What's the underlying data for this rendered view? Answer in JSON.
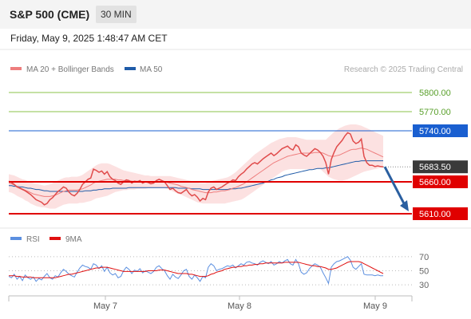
{
  "header": {
    "instrument": "S&P 500 (CME)",
    "timeframe": "30 MIN",
    "datetime": "Friday, May 9, 2025 1:48:47 AM CET"
  },
  "legend": {
    "ma20_label": "MA 20 + Bollinger Bands",
    "ma50_label": "MA 50",
    "copyright": "Research © 2025 Trading Central",
    "rsi_label": "RSI",
    "ma9_label": "9MA"
  },
  "colors": {
    "price": "#e04b4b",
    "ma20": "#ee7d7d",
    "bollinger_fill": "#fbdada",
    "ma50": "#1f5ba8",
    "resistance_blue": "#1a5fd0",
    "support_red": "#e00000",
    "target_green": "#8bc34a",
    "current_price_tag": "#3a3a3a",
    "rsi": "#5b8fe0",
    "rsi_ma": "#e01010",
    "arrow": "#2a5fa0"
  },
  "chart_data": [
    {
      "type": "line",
      "title": "",
      "x_ticks": [
        "May 7",
        "May 8",
        "May 9"
      ],
      "ylim": [
        5595,
        5825
      ],
      "current_price": 5683.5,
      "levels": [
        {
          "value": 5800.0,
          "label": "5800.00",
          "kind": "target"
        },
        {
          "value": 5770.0,
          "label": "5770.00",
          "kind": "target"
        },
        {
          "value": 5740.0,
          "label": "5740.00",
          "kind": "resistance"
        },
        {
          "value": 5683.5,
          "label": "5683.50",
          "kind": "current"
        },
        {
          "value": 5660.0,
          "label": "5660.00",
          "kind": "pivot"
        },
        {
          "value": 5610.0,
          "label": "5610.00",
          "kind": "support"
        }
      ],
      "forecast_arrow": {
        "from": 5683.5,
        "to": 5610.0,
        "direction": "down"
      },
      "series": [
        {
          "name": "Price",
          "values": [
            5661,
            5659,
            5656,
            5652,
            5650,
            5648,
            5646,
            5643,
            5640,
            5636,
            5632,
            5630,
            5628,
            5624,
            5626,
            5632,
            5635,
            5640,
            5645,
            5648,
            5652,
            5650,
            5644,
            5640,
            5638,
            5642,
            5648,
            5656,
            5660,
            5664,
            5666,
            5680,
            5678,
            5675,
            5677,
            5672,
            5676,
            5668,
            5664,
            5662,
            5658,
            5656,
            5660,
            5663,
            5662,
            5658,
            5661,
            5660,
            5662,
            5658,
            5660,
            5659,
            5657,
            5658,
            5662,
            5664,
            5662,
            5660,
            5654,
            5648,
            5650,
            5646,
            5643,
            5642,
            5645,
            5648,
            5642,
            5638,
            5640,
            5636,
            5630,
            5634,
            5632,
            5644,
            5650,
            5652,
            5648,
            5650,
            5652,
            5655,
            5658,
            5660,
            5663,
            5662,
            5668,
            5672,
            5675,
            5680,
            5684,
            5688,
            5690,
            5688,
            5692,
            5696,
            5699,
            5702,
            5705,
            5701,
            5704,
            5708,
            5712,
            5714,
            5716,
            5712,
            5710,
            5718,
            5715,
            5705,
            5702,
            5700,
            5704,
            5708,
            5712,
            5710,
            5706,
            5700,
            5690,
            5672,
            5695,
            5706,
            5715,
            5720,
            5725,
            5732,
            5737,
            5735,
            5724,
            5720,
            5722,
            5727,
            5700,
            5690,
            5686,
            5686,
            5684,
            5685,
            5684,
            5683.5
          ]
        },
        {
          "name": "MA 20",
          "values": [
            5658,
            5657,
            5655,
            5653,
            5651,
            5649,
            5647,
            5645,
            5643,
            5641,
            5640,
            5639,
            5638,
            5637,
            5637,
            5637,
            5638,
            5639,
            5641,
            5643,
            5645,
            5646,
            5647,
            5647,
            5647,
            5647,
            5648,
            5649,
            5651,
            5653,
            5655,
            5658,
            5660,
            5661,
            5662,
            5663,
            5664,
            5664,
            5664,
            5664,
            5663,
            5663,
            5662,
            5662,
            5662,
            5661,
            5661,
            5661,
            5661,
            5660,
            5660,
            5660,
            5660,
            5660,
            5660,
            5660,
            5660,
            5660,
            5659,
            5658,
            5657,
            5656,
            5655,
            5653,
            5652,
            5651,
            5650,
            5648,
            5647,
            5646,
            5645,
            5644,
            5643,
            5643,
            5643,
            5644,
            5644,
            5645,
            5646,
            5646,
            5647,
            5648,
            5650,
            5651,
            5653,
            5655,
            5657,
            5660,
            5663,
            5666,
            5669,
            5672,
            5675,
            5678,
            5681,
            5684,
            5687,
            5690,
            5692,
            5694,
            5696,
            5698,
            5700,
            5701,
            5702,
            5703,
            5704,
            5705,
            5705,
            5705,
            5705,
            5705,
            5706,
            5706,
            5706,
            5705,
            5703,
            5701,
            5700,
            5700,
            5701,
            5702,
            5704,
            5706,
            5708,
            5710,
            5711,
            5711,
            5712,
            5713,
            5712,
            5711,
            5709,
            5707,
            5705,
            5703,
            5701,
            5699
          ]
        },
        {
          "name": "Bollinger Upper",
          "values": [
            5672,
            5671,
            5670,
            5668,
            5666,
            5664,
            5663,
            5661,
            5660,
            5658,
            5657,
            5656,
            5655,
            5654,
            5655,
            5656,
            5658,
            5660,
            5662,
            5664,
            5666,
            5667,
            5667,
            5668,
            5668,
            5668,
            5669,
            5671,
            5674,
            5677,
            5680,
            5683,
            5686,
            5688,
            5689,
            5689,
            5689,
            5688,
            5686,
            5684,
            5682,
            5680,
            5678,
            5677,
            5676,
            5675,
            5674,
            5673,
            5672,
            5671,
            5670,
            5670,
            5669,
            5669,
            5669,
            5669,
            5669,
            5669,
            5669,
            5669,
            5668,
            5667,
            5666,
            5665,
            5664,
            5663,
            5662,
            5661,
            5660,
            5659,
            5658,
            5658,
            5658,
            5660,
            5661,
            5662,
            5663,
            5664,
            5665,
            5666,
            5667,
            5669,
            5672,
            5675,
            5679,
            5683,
            5687,
            5691,
            5695,
            5699,
            5703,
            5706,
            5709,
            5712,
            5715,
            5718,
            5721,
            5723,
            5725,
            5727,
            5728,
            5729,
            5730,
            5730,
            5730,
            5730,
            5729,
            5728,
            5727,
            5726,
            5726,
            5726,
            5726,
            5726,
            5726,
            5726,
            5726,
            5730,
            5734,
            5738,
            5741,
            5744,
            5746,
            5748,
            5749,
            5750,
            5750,
            5750,
            5749,
            5748,
            5746,
            5744,
            5742,
            5740,
            5738,
            5736,
            5734,
            5732
          ]
        },
        {
          "name": "Bollinger Lower",
          "values": [
            5644,
            5643,
            5641,
            5638,
            5636,
            5634,
            5631,
            5629,
            5626,
            5624,
            5622,
            5621,
            5620,
            5620,
            5619,
            5618,
            5618,
            5618,
            5620,
            5622,
            5624,
            5625,
            5626,
            5626,
            5626,
            5626,
            5627,
            5627,
            5628,
            5629,
            5630,
            5632,
            5634,
            5635,
            5636,
            5637,
            5638,
            5640,
            5642,
            5644,
            5645,
            5646,
            5647,
            5647,
            5648,
            5648,
            5648,
            5649,
            5649,
            5649,
            5649,
            5650,
            5650,
            5650,
            5650,
            5650,
            5650,
            5650,
            5649,
            5647,
            5645,
            5643,
            5641,
            5640,
            5638,
            5636,
            5634,
            5632,
            5630,
            5628,
            5627,
            5626,
            5626,
            5626,
            5626,
            5626,
            5626,
            5626,
            5626,
            5626,
            5627,
            5628,
            5629,
            5630,
            5631,
            5632,
            5634,
            5637,
            5640,
            5643,
            5646,
            5649,
            5652,
            5655,
            5658,
            5661,
            5664,
            5667,
            5670,
            5673,
            5676,
            5678,
            5679,
            5680,
            5680,
            5680,
            5680,
            5680,
            5680,
            5680,
            5680,
            5680,
            5680,
            5680,
            5680,
            5676,
            5672,
            5668,
            5666,
            5664,
            5663,
            5662,
            5662,
            5663,
            5664,
            5666,
            5668,
            5670,
            5672,
            5674,
            5676,
            5677,
            5678,
            5679,
            5680,
            5681,
            5682,
            5683
          ]
        },
        {
          "name": "MA 50",
          "values": [
            5654,
            5654,
            5653,
            5653,
            5652,
            5652,
            5651,
            5650,
            5650,
            5649,
            5648,
            5648,
            5647,
            5646,
            5646,
            5645,
            5645,
            5645,
            5645,
            5645,
            5645,
            5645,
            5645,
            5645,
            5645,
            5645,
            5645,
            5645,
            5646,
            5646,
            5646,
            5647,
            5647,
            5648,
            5648,
            5649,
            5649,
            5649,
            5650,
            5650,
            5650,
            5650,
            5650,
            5650,
            5651,
            5651,
            5651,
            5651,
            5651,
            5651,
            5651,
            5651,
            5651,
            5651,
            5651,
            5651,
            5651,
            5651,
            5651,
            5651,
            5651,
            5651,
            5650,
            5650,
            5650,
            5650,
            5650,
            5649,
            5649,
            5649,
            5649,
            5648,
            5648,
            5648,
            5648,
            5648,
            5648,
            5648,
            5648,
            5648,
            5648,
            5649,
            5649,
            5649,
            5650,
            5650,
            5651,
            5652,
            5653,
            5654,
            5655,
            5656,
            5657,
            5658,
            5660,
            5661,
            5663,
            5664,
            5666,
            5667,
            5668,
            5670,
            5671,
            5672,
            5673,
            5674,
            5675,
            5676,
            5677,
            5678,
            5679,
            5679,
            5680,
            5681,
            5681,
            5681,
            5682,
            5682,
            5683,
            5684,
            5685,
            5686,
            5687,
            5688,
            5689,
            5690,
            5691,
            5692,
            5692,
            5693,
            5693,
            5693,
            5693,
            5693,
            5693,
            5693,
            5693,
            5693
          ]
        }
      ]
    },
    {
      "type": "line",
      "title": "",
      "ylim": [
        20,
        80
      ],
      "y_ticks": [
        "70",
        "50",
        "30"
      ],
      "series": [
        {
          "name": "RSI",
          "values": [
            42,
            40,
            45,
            38,
            42,
            36,
            44,
            40,
            38,
            41,
            35,
            39,
            37,
            42,
            46,
            40,
            38,
            43,
            41,
            47,
            52,
            49,
            45,
            43,
            41,
            48,
            54,
            58,
            56,
            55,
            52,
            60,
            58,
            53,
            57,
            49,
            55,
            47,
            44,
            46,
            40,
            42,
            50,
            55,
            52,
            46,
            51,
            49,
            53,
            47,
            50,
            48,
            46,
            49,
            55,
            57,
            53,
            50,
            43,
            38,
            45,
            41,
            39,
            44,
            50,
            52,
            42,
            38,
            44,
            40,
            35,
            42,
            40,
            55,
            60,
            57,
            50,
            52,
            53,
            55,
            57,
            56,
            58,
            54,
            57,
            60,
            58,
            62,
            63,
            61,
            60,
            58,
            62,
            64,
            62,
            60,
            63,
            58,
            60,
            63,
            61,
            64,
            66,
            60,
            58,
            66,
            60,
            48,
            45,
            47,
            53,
            57,
            60,
            58,
            55,
            47,
            40,
            32,
            55,
            60,
            63,
            64,
            66,
            68,
            70,
            65,
            55,
            52,
            56,
            60,
            45,
            44,
            44,
            44,
            43,
            44,
            43,
            43
          ]
        },
        {
          "name": "9MA",
          "values": [
            43,
            43,
            43,
            42,
            42,
            41,
            41,
            41,
            41,
            40,
            40,
            40,
            40,
            40,
            40,
            40,
            40,
            40,
            41,
            42,
            43,
            44,
            45,
            45,
            46,
            47,
            48,
            49,
            50,
            51,
            52,
            53,
            54,
            54,
            55,
            55,
            55,
            54,
            53,
            52,
            51,
            50,
            49,
            49,
            49,
            49,
            49,
            49,
            49,
            49,
            49,
            50,
            50,
            50,
            50,
            51,
            51,
            51,
            50,
            49,
            48,
            47,
            46,
            46,
            46,
            46,
            45,
            45,
            44,
            43,
            42,
            42,
            42,
            43,
            45,
            46,
            48,
            49,
            50,
            52,
            53,
            54,
            55,
            55,
            56,
            56,
            57,
            57,
            58,
            58,
            59,
            59,
            60,
            60,
            61,
            61,
            61,
            61,
            61,
            61,
            61,
            62,
            62,
            62,
            62,
            62,
            62,
            61,
            60,
            59,
            58,
            57,
            57,
            56,
            56,
            55,
            54,
            52,
            52,
            53,
            54,
            56,
            58,
            60,
            62,
            63,
            63,
            63,
            63,
            62,
            60,
            58,
            56,
            54,
            52,
            50,
            48,
            46
          ]
        }
      ]
    }
  ]
}
